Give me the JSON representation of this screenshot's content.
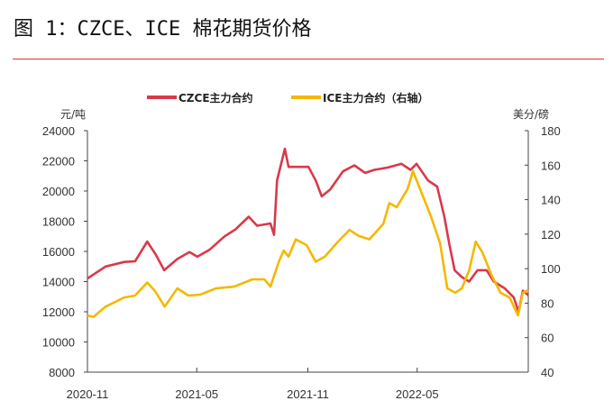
{
  "title": "图 1：CZCE、ICE 棉花期货价格",
  "chart_data": {
    "type": "line",
    "title": "",
    "ylabel_left": "元/吨",
    "ylabel_right": "美分/磅",
    "ylim_left": [
      8000,
      24000
    ],
    "ylim_right": [
      40,
      180
    ],
    "yticks_left": [
      "8000",
      "10000",
      "12000",
      "14000",
      "16000",
      "18000",
      "20000",
      "22000",
      "24000"
    ],
    "yticks_right": [
      "40",
      "60",
      "80",
      "100",
      "120",
      "140",
      "160",
      "180"
    ],
    "xlim": [
      "2020-11-01",
      "2022-11-01"
    ],
    "xticks": [
      "2020-11",
      "2021-05",
      "2021-11",
      "2022-05"
    ],
    "grid": false,
    "legend_position": "top",
    "series": [
      {
        "name": "CZCE主力合约",
        "axis": "left",
        "color": "#d9394a",
        "x": [
          "2020-11-01",
          "2020-12-01",
          "2021-01-01",
          "2021-01-19",
          "2021-02-08",
          "2021-02-22",
          "2021-03-08",
          "2021-03-30",
          "2021-04-19",
          "2021-05-02",
          "2021-05-22",
          "2021-06-16",
          "2021-07-04",
          "2021-07-26",
          "2021-08-09",
          "2021-08-31",
          "2021-09-06",
          "2021-09-11",
          "2021-09-24",
          "2021-09-30",
          "2021-11-02",
          "2021-11-14",
          "2021-11-24",
          "2021-12-08",
          "2021-12-29",
          "2022-01-17",
          "2022-02-04",
          "2022-02-19",
          "2022-03-13",
          "2022-04-05",
          "2022-04-20",
          "2022-04-30",
          "2022-05-19",
          "2022-06-03",
          "2022-06-15",
          "2022-06-23",
          "2022-07-02",
          "2022-07-14",
          "2022-07-26",
          "2022-08-09",
          "2022-08-24",
          "2022-09-05",
          "2022-09-23",
          "2022-10-08",
          "2022-10-16",
          "2022-10-23",
          "2022-11-01"
        ],
        "values": [
          14200,
          15000,
          15300,
          15350,
          16650,
          15800,
          14750,
          15500,
          15950,
          15650,
          16100,
          17000,
          17450,
          18300,
          17700,
          17850,
          17100,
          20700,
          22800,
          21600,
          21600,
          20700,
          19650,
          20100,
          21300,
          21700,
          21200,
          21400,
          21550,
          21800,
          21400,
          21800,
          20700,
          20300,
          18300,
          16550,
          14750,
          14300,
          14000,
          14750,
          14750,
          14000,
          13550,
          12950,
          12000,
          13400,
          13100
        ]
      },
      {
        "name": "ICE主力合约（右轴）",
        "axis": "right",
        "color": "#f5b800",
        "x": [
          "2020-11-01",
          "2020-11-11",
          "2020-12-01",
          "2021-01-01",
          "2021-01-19",
          "2021-02-08",
          "2021-02-21",
          "2021-03-09",
          "2021-03-30",
          "2021-04-17",
          "2021-05-07",
          "2021-06-02",
          "2021-07-02",
          "2021-08-01",
          "2021-08-21",
          "2021-08-31",
          "2021-09-14",
          "2021-09-22",
          "2021-09-30",
          "2021-10-12",
          "2021-10-30",
          "2021-11-14",
          "2021-11-29",
          "2021-12-21",
          "2022-01-09",
          "2022-01-24",
          "2022-02-11",
          "2022-03-06",
          "2022-03-16",
          "2022-03-28",
          "2022-04-15",
          "2022-04-24",
          "2022-05-09",
          "2022-05-24",
          "2022-06-08",
          "2022-06-20",
          "2022-07-03",
          "2022-07-14",
          "2022-07-26",
          "2022-08-06",
          "2022-08-17",
          "2022-09-01",
          "2022-09-16",
          "2022-10-01",
          "2022-10-15",
          "2022-10-23",
          "2022-11-01"
        ],
        "values": [
          72.9,
          72,
          78,
          83.3,
          84.4,
          92,
          87,
          78,
          88.6,
          84.4,
          85,
          88.6,
          89.6,
          93.8,
          93.8,
          89.6,
          104,
          110.5,
          107,
          117,
          113.6,
          104,
          106.9,
          115.7,
          122.5,
          119,
          117,
          126,
          138,
          135.6,
          146,
          156.5,
          143.4,
          130,
          114.7,
          88.6,
          86,
          88.6,
          99,
          115.7,
          109.5,
          96.4,
          86,
          83.3,
          72.9,
          86,
          87.5
        ]
      }
    ]
  }
}
